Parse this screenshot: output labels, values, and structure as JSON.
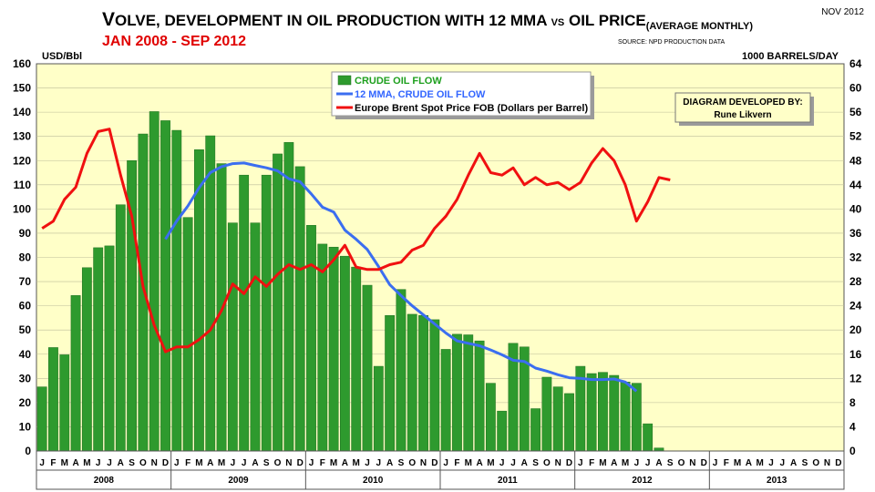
{
  "colors": {
    "plot_bg": "#ffffc8",
    "bar_fill": "#2e9a2e",
    "bar_edge": "#1f6f1f",
    "mma_line": "#3b6ef0",
    "brent_line": "#f01010",
    "legend_green_text": "#1fa01f",
    "legend_blue_text": "#3366ff",
    "subtitle": "#e00000"
  },
  "corner_label": "NOV 2012",
  "chart_data": {
    "type": "bar+line",
    "title": {
      "big1": "V",
      "small1": "OLVE, ",
      "small2": "DEVELOPMENT IN OIL PRODUCTION WITH 12 MMA ",
      "small_vs": "VS",
      "small3": " OIL PRICE",
      "sub": "(AVERAGE MONTHLY)"
    },
    "subtitle": "JAN 2008 - SEP 2012",
    "source": "SOURCE: NPD PRODUCTION DATA",
    "left_axis_label": "USD/Bbl",
    "right_axis_label": "1000 BARRELS/DAY",
    "left_ylim": [
      0,
      160
    ],
    "right_ylim": [
      0,
      64
    ],
    "left_ticks": [
      0,
      10,
      20,
      30,
      40,
      50,
      60,
      70,
      80,
      90,
      100,
      110,
      120,
      130,
      140,
      150,
      160
    ],
    "right_ticks": [
      0,
      4,
      8,
      12,
      16,
      20,
      24,
      28,
      32,
      36,
      40,
      44,
      48,
      52,
      56,
      60,
      64
    ],
    "years": [
      "2008",
      "2009",
      "2010",
      "2011",
      "2012",
      "2013"
    ],
    "month_letters": [
      "J",
      "F",
      "M",
      "A",
      "M",
      "J",
      "J",
      "A",
      "S",
      "O",
      "N",
      "D"
    ],
    "credit": {
      "line1": "DIAGRAM DEVELOPED BY:",
      "line2": "Rune Likvern"
    },
    "series": [
      {
        "name": "CRUDE OIL FLOW",
        "axis": "right",
        "kind": "bar",
        "start_index": 0,
        "values": [
          10.6,
          17.1,
          15.9,
          25.7,
          30.3,
          33.6,
          33.9,
          40.7,
          48.0,
          52.4,
          56.1,
          54.6,
          53.0,
          38.6,
          49.8,
          52.1,
          47.5,
          37.7,
          45.6,
          37.7,
          45.6,
          49.1,
          51.0,
          47.0,
          37.3,
          34.2,
          33.7,
          32.2,
          30.4,
          27.4,
          14.0,
          22.4,
          26.7,
          22.6,
          22.4,
          21.7,
          16.8,
          19.3,
          19.2,
          18.2,
          11.2,
          6.6,
          17.8,
          17.2,
          7.0,
          12.2,
          10.6,
          9.5,
          14.0,
          12.8,
          13.0,
          12.5,
          11.4,
          11.2,
          4.5,
          0.5
        ]
      },
      {
        "name": "12 MMA, CRUDE OIL FLOW",
        "axis": "right",
        "kind": "line",
        "start_index": 11,
        "values": [
          35.0,
          38.0,
          40.5,
          43.5,
          46.0,
          47.0,
          47.5,
          47.6,
          47.2,
          46.8,
          46.3,
          45.0,
          44.5,
          42.5,
          40.3,
          39.5,
          36.5,
          35.0,
          33.3,
          30.5,
          27.5,
          25.7,
          24.0,
          22.5,
          21.0,
          19.5,
          18.2,
          17.8,
          17.4,
          16.7,
          15.9,
          15.0,
          14.8,
          13.7,
          13.2,
          12.6,
          12.1,
          12.0,
          11.8,
          11.8,
          11.9,
          11.4,
          9.9
        ]
      },
      {
        "name": "Europe Brent Spot Price FOB (Dollars per Barrel)",
        "axis": "left",
        "kind": "line",
        "start_index": 0,
        "values": [
          92,
          95,
          104,
          109,
          123,
          132,
          133,
          114,
          97,
          68,
          52,
          41,
          43,
          43,
          46,
          50,
          58,
          69,
          65,
          72,
          68,
          73,
          77,
          75,
          77,
          74,
          79,
          85,
          76,
          75,
          75,
          77,
          78,
          83,
          85,
          92,
          97,
          104,
          114,
          123,
          115,
          114,
          117,
          110,
          113,
          110,
          111,
          108,
          111,
          119,
          125,
          120,
          110,
          95,
          103,
          113,
          112
        ]
      }
    ]
  }
}
